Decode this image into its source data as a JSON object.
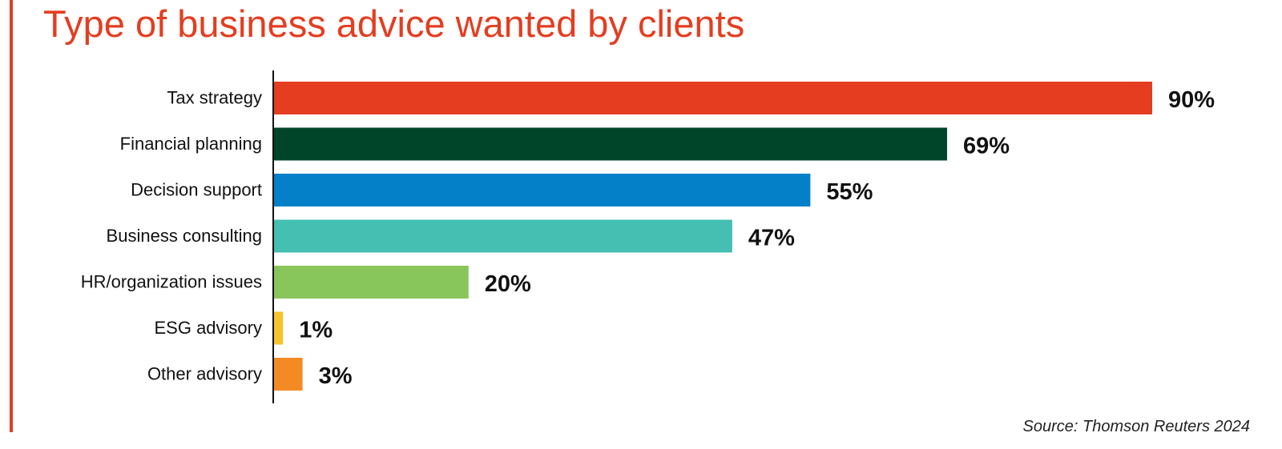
{
  "chart_data": {
    "type": "bar",
    "orientation": "horizontal",
    "title": "Type of business advice wanted by clients",
    "source": "Source: Thomson Reuters 2024",
    "categories": [
      "Tax strategy",
      "Financial planning",
      "Decision support",
      "Business consulting",
      "HR/organization issues",
      "ESG advisory",
      "Other advisory"
    ],
    "values": [
      90,
      69,
      55,
      47,
      20,
      1,
      3
    ],
    "value_labels": [
      "90%",
      "69%",
      "55%",
      "47%",
      "20%",
      "1%",
      "3%"
    ],
    "colors": [
      "#e43d20",
      "#00452a",
      "#0480c8",
      "#44bfb2",
      "#88c55a",
      "#f5c32c",
      "#f38a24"
    ],
    "xlim": [
      0,
      90
    ],
    "unit": "%",
    "grid": false,
    "legend": "none"
  }
}
